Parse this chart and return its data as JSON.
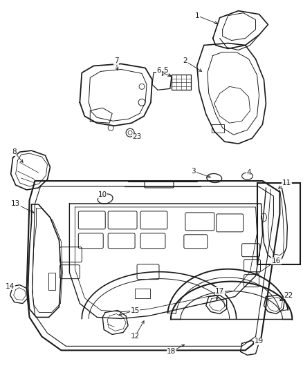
{
  "background_color": "#ffffff",
  "fig_width": 4.39,
  "fig_height": 5.33,
  "dpi": 100,
  "line_color": "#1a1a1a",
  "label_fontsize": 7.5,
  "arrow_color": "#1a1a1a"
}
